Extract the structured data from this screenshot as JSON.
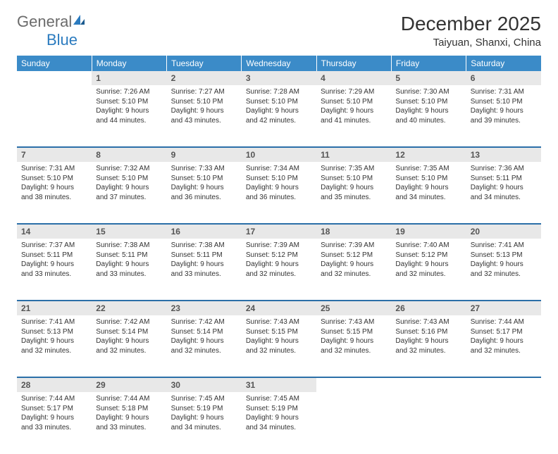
{
  "brand": {
    "part1": "General",
    "part2": "Blue"
  },
  "title": "December 2025",
  "location": "Taiyuan, Shanxi, China",
  "colors": {
    "header_bg": "#3b8bc8",
    "header_text": "#ffffff",
    "row_divider": "#2b6fa8",
    "daynum_bg": "#e8e8e8",
    "daynum_text": "#555555",
    "body_text": "#333333",
    "logo_gray": "#6b6b6b",
    "logo_blue": "#2b7bbf"
  },
  "daysOfWeek": [
    "Sunday",
    "Monday",
    "Tuesday",
    "Wednesday",
    "Thursday",
    "Friday",
    "Saturday"
  ],
  "weeks": [
    {
      "nums": [
        "",
        "1",
        "2",
        "3",
        "4",
        "5",
        "6"
      ],
      "cells": [
        null,
        {
          "sr": "Sunrise: 7:26 AM",
          "ss": "Sunset: 5:10 PM",
          "dl1": "Daylight: 9 hours",
          "dl2": "and 44 minutes."
        },
        {
          "sr": "Sunrise: 7:27 AM",
          "ss": "Sunset: 5:10 PM",
          "dl1": "Daylight: 9 hours",
          "dl2": "and 43 minutes."
        },
        {
          "sr": "Sunrise: 7:28 AM",
          "ss": "Sunset: 5:10 PM",
          "dl1": "Daylight: 9 hours",
          "dl2": "and 42 minutes."
        },
        {
          "sr": "Sunrise: 7:29 AM",
          "ss": "Sunset: 5:10 PM",
          "dl1": "Daylight: 9 hours",
          "dl2": "and 41 minutes."
        },
        {
          "sr": "Sunrise: 7:30 AM",
          "ss": "Sunset: 5:10 PM",
          "dl1": "Daylight: 9 hours",
          "dl2": "and 40 minutes."
        },
        {
          "sr": "Sunrise: 7:31 AM",
          "ss": "Sunset: 5:10 PM",
          "dl1": "Daylight: 9 hours",
          "dl2": "and 39 minutes."
        }
      ]
    },
    {
      "nums": [
        "7",
        "8",
        "9",
        "10",
        "11",
        "12",
        "13"
      ],
      "cells": [
        {
          "sr": "Sunrise: 7:31 AM",
          "ss": "Sunset: 5:10 PM",
          "dl1": "Daylight: 9 hours",
          "dl2": "and 38 minutes."
        },
        {
          "sr": "Sunrise: 7:32 AM",
          "ss": "Sunset: 5:10 PM",
          "dl1": "Daylight: 9 hours",
          "dl2": "and 37 minutes."
        },
        {
          "sr": "Sunrise: 7:33 AM",
          "ss": "Sunset: 5:10 PM",
          "dl1": "Daylight: 9 hours",
          "dl2": "and 36 minutes."
        },
        {
          "sr": "Sunrise: 7:34 AM",
          "ss": "Sunset: 5:10 PM",
          "dl1": "Daylight: 9 hours",
          "dl2": "and 36 minutes."
        },
        {
          "sr": "Sunrise: 7:35 AM",
          "ss": "Sunset: 5:10 PM",
          "dl1": "Daylight: 9 hours",
          "dl2": "and 35 minutes."
        },
        {
          "sr": "Sunrise: 7:35 AM",
          "ss": "Sunset: 5:10 PM",
          "dl1": "Daylight: 9 hours",
          "dl2": "and 34 minutes."
        },
        {
          "sr": "Sunrise: 7:36 AM",
          "ss": "Sunset: 5:11 PM",
          "dl1": "Daylight: 9 hours",
          "dl2": "and 34 minutes."
        }
      ]
    },
    {
      "nums": [
        "14",
        "15",
        "16",
        "17",
        "18",
        "19",
        "20"
      ],
      "cells": [
        {
          "sr": "Sunrise: 7:37 AM",
          "ss": "Sunset: 5:11 PM",
          "dl1": "Daylight: 9 hours",
          "dl2": "and 33 minutes."
        },
        {
          "sr": "Sunrise: 7:38 AM",
          "ss": "Sunset: 5:11 PM",
          "dl1": "Daylight: 9 hours",
          "dl2": "and 33 minutes."
        },
        {
          "sr": "Sunrise: 7:38 AM",
          "ss": "Sunset: 5:11 PM",
          "dl1": "Daylight: 9 hours",
          "dl2": "and 33 minutes."
        },
        {
          "sr": "Sunrise: 7:39 AM",
          "ss": "Sunset: 5:12 PM",
          "dl1": "Daylight: 9 hours",
          "dl2": "and 32 minutes."
        },
        {
          "sr": "Sunrise: 7:39 AM",
          "ss": "Sunset: 5:12 PM",
          "dl1": "Daylight: 9 hours",
          "dl2": "and 32 minutes."
        },
        {
          "sr": "Sunrise: 7:40 AM",
          "ss": "Sunset: 5:12 PM",
          "dl1": "Daylight: 9 hours",
          "dl2": "and 32 minutes."
        },
        {
          "sr": "Sunrise: 7:41 AM",
          "ss": "Sunset: 5:13 PM",
          "dl1": "Daylight: 9 hours",
          "dl2": "and 32 minutes."
        }
      ]
    },
    {
      "nums": [
        "21",
        "22",
        "23",
        "24",
        "25",
        "26",
        "27"
      ],
      "cells": [
        {
          "sr": "Sunrise: 7:41 AM",
          "ss": "Sunset: 5:13 PM",
          "dl1": "Daylight: 9 hours",
          "dl2": "and 32 minutes."
        },
        {
          "sr": "Sunrise: 7:42 AM",
          "ss": "Sunset: 5:14 PM",
          "dl1": "Daylight: 9 hours",
          "dl2": "and 32 minutes."
        },
        {
          "sr": "Sunrise: 7:42 AM",
          "ss": "Sunset: 5:14 PM",
          "dl1": "Daylight: 9 hours",
          "dl2": "and 32 minutes."
        },
        {
          "sr": "Sunrise: 7:43 AM",
          "ss": "Sunset: 5:15 PM",
          "dl1": "Daylight: 9 hours",
          "dl2": "and 32 minutes."
        },
        {
          "sr": "Sunrise: 7:43 AM",
          "ss": "Sunset: 5:15 PM",
          "dl1": "Daylight: 9 hours",
          "dl2": "and 32 minutes."
        },
        {
          "sr": "Sunrise: 7:43 AM",
          "ss": "Sunset: 5:16 PM",
          "dl1": "Daylight: 9 hours",
          "dl2": "and 32 minutes."
        },
        {
          "sr": "Sunrise: 7:44 AM",
          "ss": "Sunset: 5:17 PM",
          "dl1": "Daylight: 9 hours",
          "dl2": "and 32 minutes."
        }
      ]
    },
    {
      "nums": [
        "28",
        "29",
        "30",
        "31",
        "",
        "",
        ""
      ],
      "cells": [
        {
          "sr": "Sunrise: 7:44 AM",
          "ss": "Sunset: 5:17 PM",
          "dl1": "Daylight: 9 hours",
          "dl2": "and 33 minutes."
        },
        {
          "sr": "Sunrise: 7:44 AM",
          "ss": "Sunset: 5:18 PM",
          "dl1": "Daylight: 9 hours",
          "dl2": "and 33 minutes."
        },
        {
          "sr": "Sunrise: 7:45 AM",
          "ss": "Sunset: 5:19 PM",
          "dl1": "Daylight: 9 hours",
          "dl2": "and 34 minutes."
        },
        {
          "sr": "Sunrise: 7:45 AM",
          "ss": "Sunset: 5:19 PM",
          "dl1": "Daylight: 9 hours",
          "dl2": "and 34 minutes."
        },
        null,
        null,
        null
      ]
    }
  ]
}
